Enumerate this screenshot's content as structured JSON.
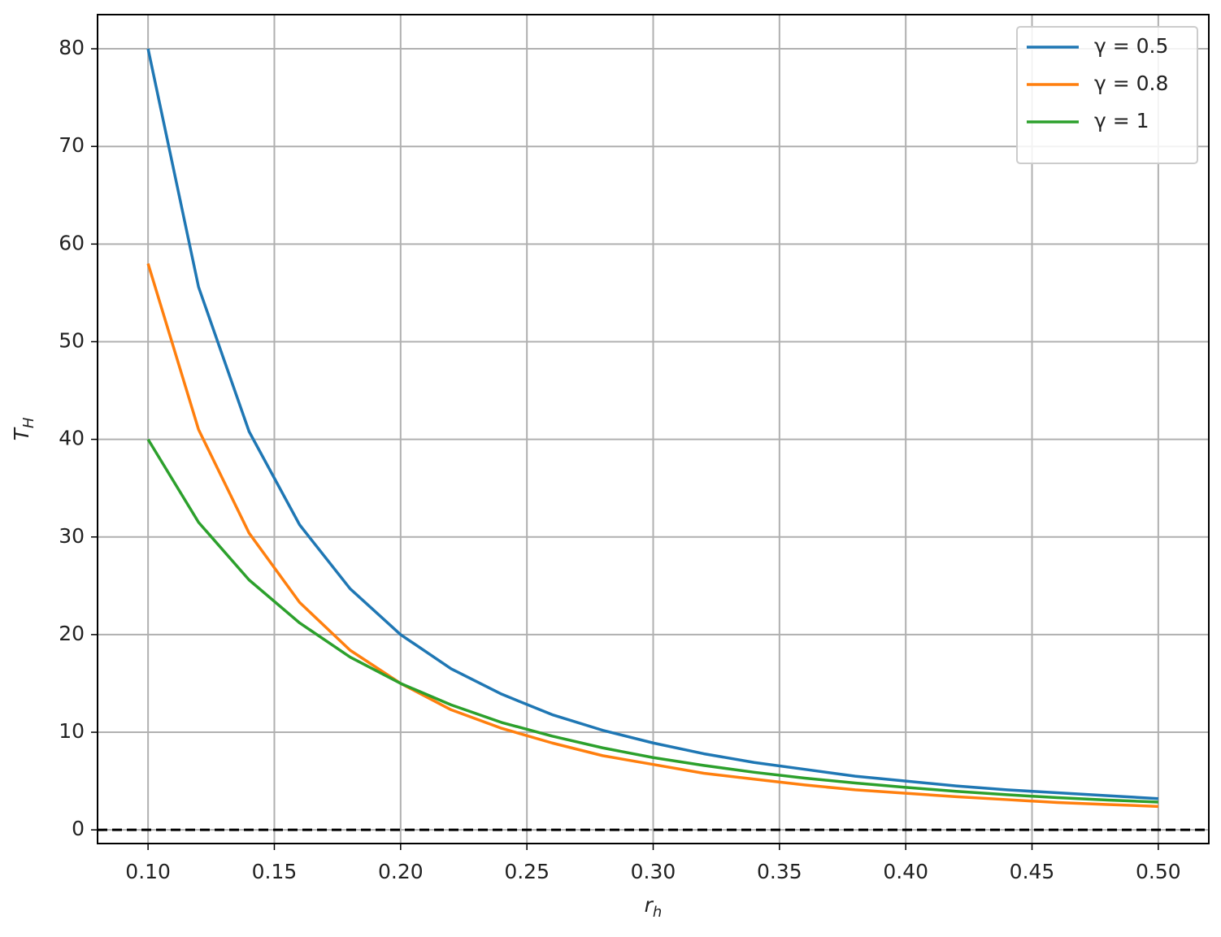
{
  "chart_data": {
    "type": "line",
    "xlabel": "r",
    "xlabel_sub": "h",
    "ylabel": "T",
    "ylabel_sub": "H",
    "x": [
      0.1,
      0.12,
      0.14,
      0.16,
      0.18,
      0.2,
      0.22,
      0.24,
      0.26,
      0.28,
      0.3,
      0.32,
      0.34,
      0.36,
      0.38,
      0.4,
      0.42,
      0.44,
      0.46,
      0.48,
      0.5
    ],
    "series": [
      {
        "name": "γ = 0.5",
        "color": "#1f77b4",
        "values": [
          80,
          55.6,
          40.8,
          31.25,
          24.7,
          20,
          16.5,
          13.9,
          11.8,
          10.2,
          8.9,
          7.8,
          6.9,
          6.2,
          5.5,
          5.0,
          4.5,
          4.1,
          3.8,
          3.5,
          3.2
        ]
      },
      {
        "name": "γ = 0.8",
        "color": "#ff7f0e",
        "values": [
          58,
          41,
          30.4,
          23.3,
          18.4,
          15,
          12.3,
          10.4,
          8.9,
          7.6,
          6.7,
          5.8,
          5.2,
          4.6,
          4.1,
          3.75,
          3.4,
          3.1,
          2.8,
          2.6,
          2.4
        ]
      },
      {
        "name": "γ = 1",
        "color": "#2ca02c",
        "values": [
          40,
          31.5,
          25.6,
          21.2,
          17.7,
          15,
          12.8,
          11,
          9.6,
          8.4,
          7.4,
          6.6,
          5.9,
          5.3,
          4.8,
          4.35,
          3.95,
          3.6,
          3.3,
          3.05,
          2.85
        ]
      }
    ],
    "xlim": [
      0.08,
      0.52
    ],
    "ylim": [
      -1.4,
      83.5
    ],
    "xticks": [
      {
        "value": 0.1,
        "label": "0.10"
      },
      {
        "value": 0.15,
        "label": "0.15"
      },
      {
        "value": 0.2,
        "label": "0.20"
      },
      {
        "value": 0.25,
        "label": "0.25"
      },
      {
        "value": 0.3,
        "label": "0.30"
      },
      {
        "value": 0.35,
        "label": "0.35"
      },
      {
        "value": 0.4,
        "label": "0.40"
      },
      {
        "value": 0.45,
        "label": "0.45"
      },
      {
        "value": 0.5,
        "label": "0.50"
      }
    ],
    "yticks": [
      0,
      10,
      20,
      30,
      40,
      50,
      60,
      70,
      80
    ],
    "grid": true,
    "hline": {
      "y": 0,
      "color": "#000000",
      "dashed": true
    },
    "legend": "upper right"
  }
}
